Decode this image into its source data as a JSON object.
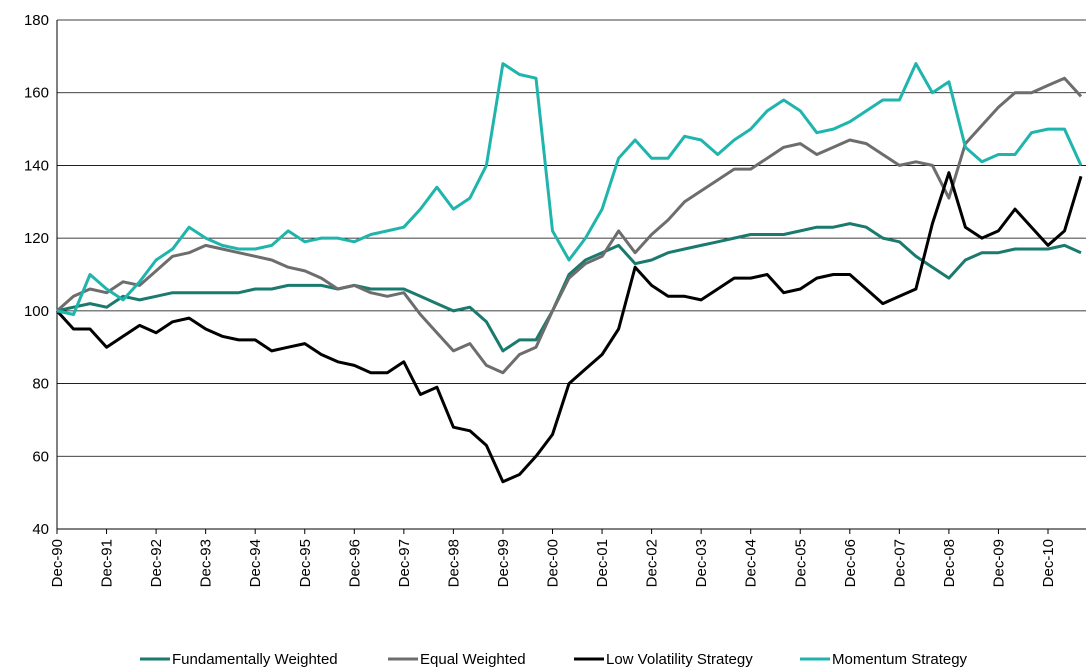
{
  "chart_data": {
    "type": "line",
    "x": [
      "Dec-90",
      "Apr-91",
      "Aug-91",
      "Dec-91",
      "Apr-92",
      "Aug-92",
      "Dec-92",
      "Apr-93",
      "Aug-93",
      "Dec-93",
      "Apr-94",
      "Aug-94",
      "Dec-94",
      "Apr-95",
      "Aug-95",
      "Dec-95",
      "Apr-96",
      "Aug-96",
      "Dec-96",
      "Apr-97",
      "Aug-97",
      "Dec-97",
      "Apr-98",
      "Aug-98",
      "Dec-98",
      "Apr-99",
      "Aug-99",
      "Dec-99",
      "Apr-00",
      "Aug-00",
      "Dec-00",
      "Apr-01",
      "Aug-01",
      "Dec-01",
      "Apr-02",
      "Aug-02",
      "Dec-02",
      "Apr-03",
      "Aug-03",
      "Dec-03",
      "Apr-04",
      "Aug-04",
      "Dec-04",
      "Apr-05",
      "Aug-05",
      "Dec-05",
      "Apr-06",
      "Aug-06",
      "Dec-06",
      "Apr-07",
      "Aug-07",
      "Dec-07",
      "Apr-08",
      "Aug-08",
      "Dec-08",
      "Apr-09",
      "Aug-09",
      "Dec-09",
      "Apr-10",
      "Aug-10",
      "Dec-10",
      "Apr-11",
      "Aug-11"
    ],
    "series": [
      {
        "name": "Fundamentally Weighted",
        "color": "#1a7a6e",
        "values": [
          100,
          101,
          102,
          101,
          104,
          103,
          104,
          105,
          105,
          105,
          105,
          105,
          106,
          106,
          107,
          107,
          107,
          106,
          107,
          106,
          106,
          106,
          104,
          102,
          100,
          101,
          97,
          89,
          92,
          92,
          100,
          110,
          114,
          116,
          118,
          113,
          114,
          116,
          117,
          118,
          119,
          120,
          121,
          121,
          121,
          122,
          123,
          123,
          124,
          123,
          120,
          119,
          115,
          112,
          109,
          114,
          116,
          116,
          117,
          117,
          117,
          118,
          116
        ]
      },
      {
        "name": "Equal Weighted",
        "color": "#6d6d6d",
        "values": [
          100,
          104,
          106,
          105,
          108,
          107,
          111,
          115,
          116,
          118,
          117,
          116,
          115,
          114,
          112,
          111,
          109,
          106,
          107,
          105,
          104,
          105,
          99,
          94,
          89,
          91,
          85,
          83,
          88,
          90,
          100,
          109,
          113,
          115,
          122,
          116,
          121,
          125,
          130,
          133,
          136,
          139,
          139,
          142,
          145,
          146,
          143,
          145,
          147,
          146,
          143,
          140,
          141,
          140,
          131,
          146,
          151,
          156,
          160,
          160,
          162,
          164,
          159
        ]
      },
      {
        "name": "Low Volatility Strategy",
        "color": "#000000",
        "values": [
          100,
          95,
          95,
          90,
          93,
          96,
          94,
          97,
          98,
          95,
          93,
          92,
          92,
          89,
          90,
          91,
          88,
          86,
          85,
          83,
          83,
          86,
          77,
          79,
          68,
          67,
          63,
          53,
          55,
          60,
          66,
          80,
          84,
          88,
          95,
          112,
          107,
          104,
          104,
          103,
          106,
          109,
          109,
          110,
          105,
          106,
          109,
          110,
          110,
          106,
          102,
          104,
          106,
          124,
          138,
          123,
          120,
          122,
          128,
          123,
          118,
          122,
          137
        ]
      },
      {
        "name": "Momentum Strategy",
        "color": "#1fb5ad",
        "values": [
          100,
          99,
          110,
          106,
          103,
          108,
          114,
          117,
          123,
          120,
          118,
          117,
          117,
          118,
          122,
          119,
          120,
          120,
          119,
          121,
          122,
          123,
          128,
          134,
          128,
          131,
          140,
          168,
          165,
          164,
          122,
          114,
          120,
          128,
          142,
          147,
          142,
          142,
          148,
          147,
          143,
          147,
          150,
          155,
          158,
          155,
          149,
          150,
          152,
          155,
          158,
          158,
          168,
          160,
          163,
          145,
          141,
          143,
          143,
          149,
          150,
          150,
          140
        ]
      }
    ],
    "ylim": [
      40,
      180
    ],
    "yticks": [
      40,
      60,
      80,
      100,
      120,
      140,
      160,
      180
    ],
    "xticks": [
      "Dec-90",
      "Dec-91",
      "Dec-92",
      "Dec-93",
      "Dec-94",
      "Dec-95",
      "Dec-96",
      "Dec-97",
      "Dec-98",
      "Dec-99",
      "Dec-00",
      "Dec-01",
      "Dec-02",
      "Dec-03",
      "Dec-04",
      "Dec-05",
      "Dec-06",
      "Dec-07",
      "Dec-08",
      "Dec-09",
      "Dec-10"
    ],
    "grid": true,
    "legend": "bottom"
  }
}
